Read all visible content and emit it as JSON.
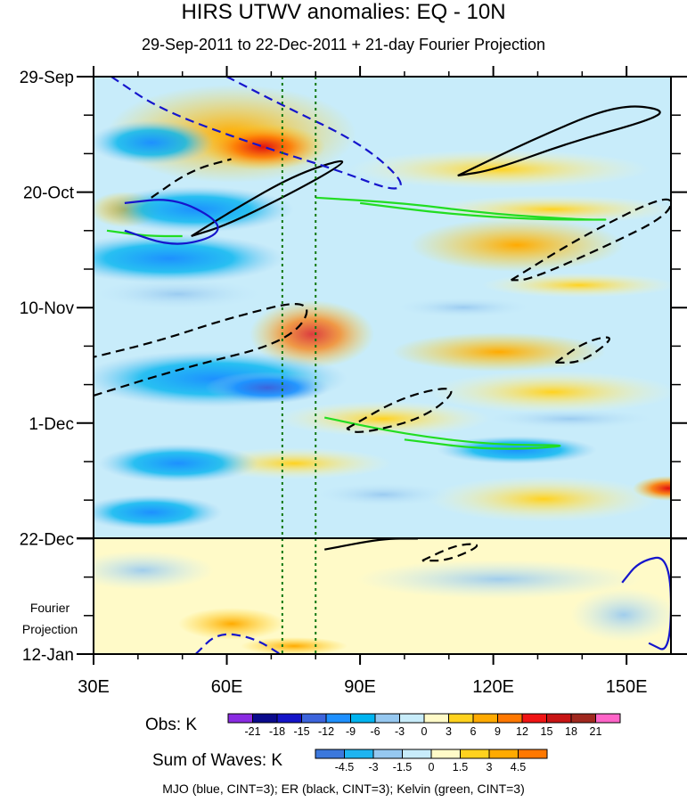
{
  "title": "HIRS UTWV anomalies: EQ - 10N",
  "subtitle": "29-Sep-2011 to 22-Dec-2011 + 21-day Fourier Projection",
  "projection_label_line1": "Fourier",
  "projection_label_line2": "Projection",
  "obs_label": "Obs: K",
  "waves_label": "Sum of Waves: K",
  "footer": "MJO (blue, CINT=3); ER (black, CINT=3); Kelvin (green, CINT=3)",
  "colors": {
    "mjo": "#1515cc",
    "er": "#000000",
    "kelvin": "#22dd22",
    "reference_lines": "#117711"
  },
  "obs_colorbar": {
    "labels": [
      "-21",
      "-18",
      "-15",
      "-12",
      "-9",
      "-6",
      "-3",
      "0",
      "3",
      "6",
      "9",
      "12",
      "15",
      "18",
      "21"
    ],
    "colors": [
      "#8a2be2",
      "#0a0a8c",
      "#1414c8",
      "#3c64dc",
      "#1e90ff",
      "#00b4f0",
      "#96c8f0",
      "#c8ecfa",
      "#fffac8",
      "#ffd21e",
      "#ffaa00",
      "#ff7800",
      "#f01414",
      "#c81414",
      "#a0281e",
      "#ff64c8"
    ]
  },
  "waves_colorbar": {
    "labels": [
      "-4.5",
      "-3",
      "-1.5",
      "0",
      "1.5",
      "3",
      "4.5"
    ],
    "colors": [
      "#3c78dc",
      "#1eb4f0",
      "#96c8f0",
      "#c8ecfa",
      "#fffac8",
      "#ffd21e",
      "#ffaa00",
      "#ff7800"
    ]
  },
  "chart_data": {
    "type": "heatmap",
    "title": "HIRS UTWV anomalies: EQ - 10N",
    "subtitle": "29-Sep-2011 to 22-Dec-2011 + 21-day Fourier Projection",
    "x_axis": {
      "range": [
        30,
        160
      ],
      "ticks": [
        30,
        60,
        90,
        120,
        150
      ],
      "tick_labels": [
        "30E",
        "60E",
        "90E",
        "120E",
        "150E"
      ]
    },
    "y_axis": {
      "range_days": [
        0,
        105
      ],
      "ticks_days": [
        0,
        21,
        42,
        63,
        84,
        105
      ],
      "tick_labels": [
        "29-Sep",
        "20-Oct",
        "10-Nov",
        "1-Dec",
        "22-Dec",
        "12-Jan"
      ]
    },
    "observation_end_day": 84,
    "reference_longitudes": [
      72.5,
      80
    ],
    "anomaly_features": [
      {
        "lon": 70,
        "day": 12,
        "value": 15
      },
      {
        "lon": 85,
        "day": 46,
        "value": 9
      },
      {
        "lon": 68,
        "day": 57,
        "value": -12
      },
      {
        "lon": 42,
        "day": 10,
        "value": -9
      },
      {
        "lon": 45,
        "day": 37,
        "value": -9
      },
      {
        "lon": 130,
        "day": 30,
        "value": 6
      },
      {
        "lon": 160,
        "day": 74,
        "value": 12
      },
      {
        "lon": 55,
        "day": 100,
        "value": 3
      }
    ],
    "contours": {
      "mjo": [
        {
          "sign": "negative",
          "points": [
            [
              34,
              0
            ],
            [
              45,
              6
            ],
            [
              65,
              12
            ],
            [
              85,
              17
            ],
            [
              98,
              21
            ],
            [
              100,
              19
            ],
            [
              90,
              12
            ],
            [
              72,
              5
            ],
            [
              60,
              0
            ]
          ]
        },
        {
          "sign": "positive",
          "points": [
            [
              37,
              23
            ],
            [
              48,
              22
            ],
            [
              58,
              26
            ],
            [
              58,
              29
            ],
            [
              48,
              31
            ],
            [
              37,
              28
            ]
          ]
        },
        {
          "sign": "positive",
          "points": [
            [
              149,
              92
            ],
            [
              153,
              88
            ],
            [
              160,
              87
            ],
            [
              160,
              105
            ],
            [
              155,
              103
            ]
          ]
        },
        {
          "sign": "negative",
          "points": [
            [
              53,
              105
            ],
            [
              58,
              101
            ],
            [
              66,
              102
            ],
            [
              72,
              105
            ]
          ]
        }
      ],
      "er": [
        {
          "sign": "positive",
          "points": [
            [
              52,
              29
            ],
            [
              62,
              24
            ],
            [
              75,
              18
            ],
            [
              86,
              15
            ],
            [
              86,
              16
            ],
            [
              75,
              21
            ],
            [
              60,
              27
            ],
            [
              52,
              29
            ]
          ]
        },
        {
          "sign": "negative",
          "points": [
            [
              43,
              22
            ],
            [
              52,
              17
            ],
            [
              61,
              15
            ]
          ]
        },
        {
          "sign": "positive",
          "points": [
            [
              112,
              18
            ],
            [
              130,
              11
            ],
            [
              148,
              5
            ],
            [
              159,
              6
            ],
            [
              155,
              8
            ],
            [
              137,
              12
            ],
            [
              120,
              17
            ],
            [
              112,
              18
            ]
          ]
        },
        {
          "sign": "negative",
          "points": [
            [
              124,
              37
            ],
            [
              140,
              29
            ],
            [
              160,
              21
            ],
            [
              160,
              25
            ],
            [
              145,
              31
            ],
            [
              128,
              37
            ],
            [
              124,
              37
            ]
          ]
        },
        {
          "sign": "negative",
          "points": [
            [
              30,
              58
            ],
            [
              50,
              53
            ],
            [
              75,
              48
            ],
            [
              80,
              40
            ],
            [
              60,
              44
            ],
            [
              45,
              48
            ],
            [
              30,
              51
            ]
          ]
        },
        {
          "sign": "negative",
          "points": [
            [
              87,
              64
            ],
            [
              100,
              58
            ],
            [
              113,
              56
            ],
            [
              105,
              62
            ],
            [
              90,
              65
            ],
            [
              87,
              64
            ]
          ]
        },
        {
          "sign": "negative",
          "points": [
            [
              134,
              52
            ],
            [
              141,
              48
            ],
            [
              148,
              47
            ],
            [
              140,
              52
            ],
            [
              134,
              52
            ]
          ]
        },
        {
          "sign": "positive",
          "points": [
            [
              82,
              86
            ],
            [
              95,
              84
            ],
            [
              103,
              84
            ]
          ]
        },
        {
          "sign": "negative",
          "points": [
            [
              104,
              88
            ],
            [
              112,
              85
            ],
            [
              118,
              85
            ],
            [
              110,
              88
            ],
            [
              104,
              88
            ]
          ]
        }
      ],
      "kelvin": [
        {
          "sign": "positive",
          "points": [
            [
              80,
              22
            ],
            [
              100,
              23
            ],
            [
              120,
              25
            ],
            [
              140,
              26
            ],
            [
              148,
              26
            ],
            [
              130,
              26
            ],
            [
              110,
              25
            ],
            [
              90,
              23
            ]
          ]
        },
        {
          "sign": "positive",
          "points": [
            [
              33,
              28
            ],
            [
              42,
              29
            ],
            [
              50,
              29
            ]
          ]
        },
        {
          "sign": "positive",
          "points": [
            [
              82,
              62
            ],
            [
              100,
              65
            ],
            [
              120,
              67
            ],
            [
              140,
              67
            ],
            [
              120,
              68
            ],
            [
              100,
              66
            ]
          ]
        }
      ]
    }
  }
}
